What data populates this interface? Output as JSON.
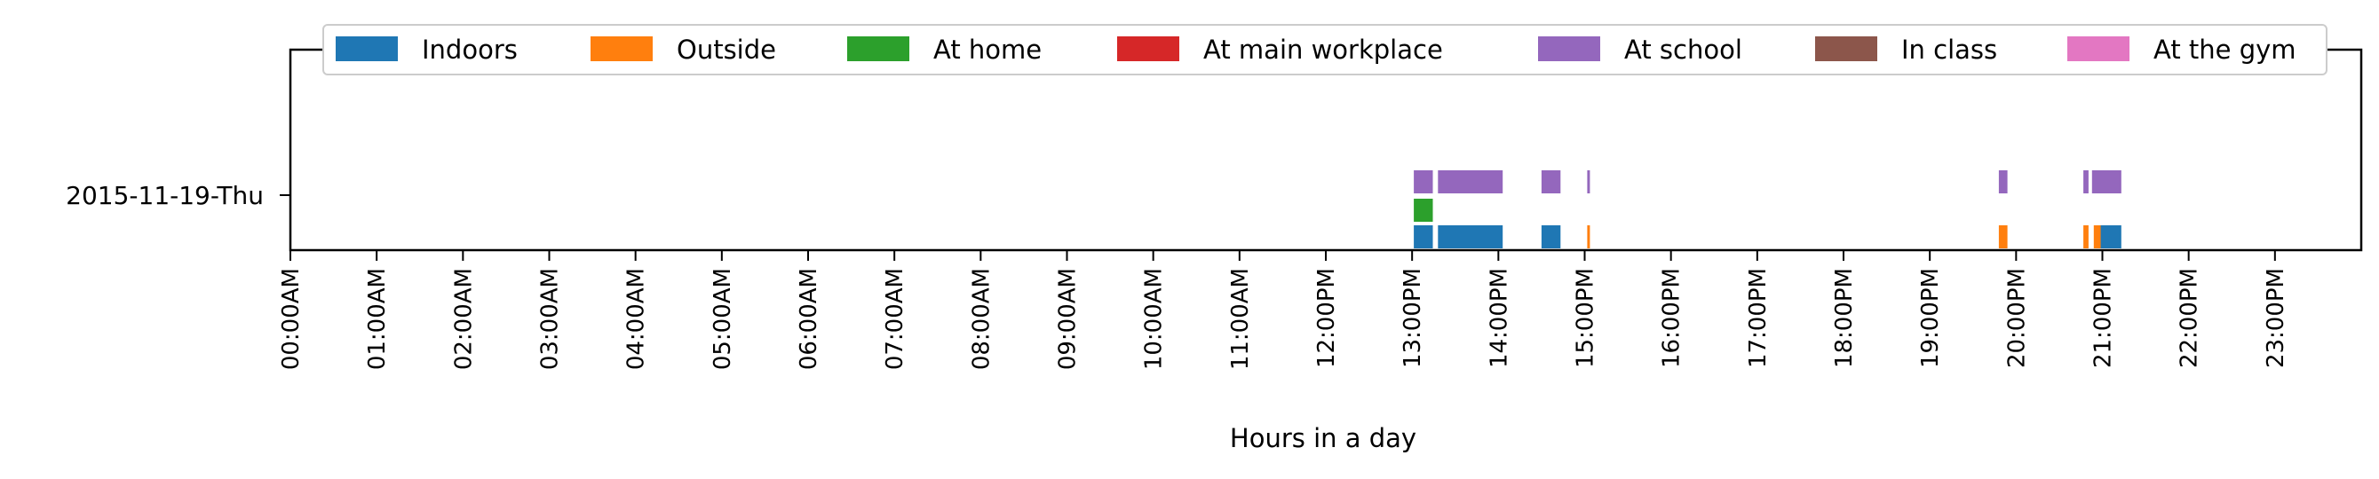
{
  "chart_data": {
    "type": "timeline",
    "xlabel": "Hours in a day",
    "xlim": [
      0,
      24
    ],
    "x_tick_labels": [
      "00:00AM",
      "01:00AM",
      "02:00AM",
      "03:00AM",
      "04:00AM",
      "05:00AM",
      "06:00AM",
      "07:00AM",
      "08:00AM",
      "09:00AM",
      "10:00AM",
      "11:00AM",
      "12:00PM",
      "13:00PM",
      "14:00PM",
      "15:00PM",
      "16:00PM",
      "17:00PM",
      "18:00PM",
      "19:00PM",
      "20:00PM",
      "21:00PM",
      "22:00PM",
      "23:00PM"
    ],
    "y_tick_labels": [
      "2015-11-19-Thu"
    ],
    "legend_position": "top-center",
    "series": [
      {
        "name": "Indoors",
        "color": "#1f77b4",
        "lane": 0,
        "intervals": [
          [
            13.02,
            13.24
          ],
          [
            13.3,
            14.05
          ],
          [
            14.5,
            14.72
          ],
          [
            20.95,
            21.22
          ]
        ]
      },
      {
        "name": "Outside",
        "color": "#ff7f0e",
        "lane": 0,
        "intervals": [
          [
            15.03,
            15.06
          ],
          [
            19.8,
            19.9
          ],
          [
            20.78,
            20.84
          ],
          [
            20.9,
            20.98
          ]
        ]
      },
      {
        "name": "At home",
        "color": "#2ca02c",
        "lane": 1,
        "intervals": [
          [
            13.02,
            13.24
          ]
        ]
      },
      {
        "name": "At main workplace",
        "color": "#d62728",
        "lane": 2,
        "intervals": []
      },
      {
        "name": "At school",
        "color": "#9467bd",
        "lane": 2,
        "intervals": [
          [
            13.02,
            13.24
          ],
          [
            13.3,
            14.05
          ],
          [
            14.5,
            14.72
          ],
          [
            15.03,
            15.06
          ],
          [
            19.8,
            19.9
          ],
          [
            20.78,
            20.84
          ],
          [
            20.88,
            21.22
          ]
        ]
      },
      {
        "name": "In class",
        "color": "#8c564b",
        "lane": 2,
        "intervals": []
      },
      {
        "name": "At the gym",
        "color": "#e377c2",
        "lane": 2,
        "intervals": []
      }
    ]
  }
}
